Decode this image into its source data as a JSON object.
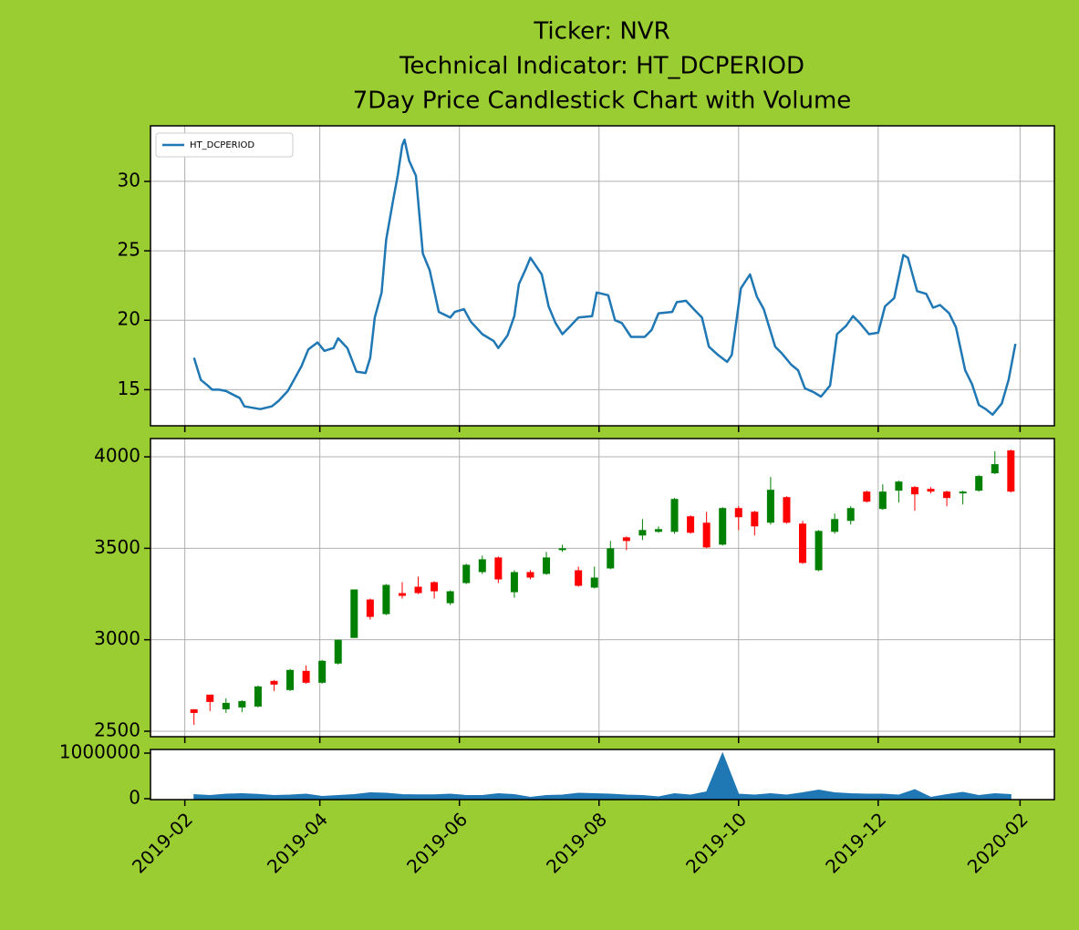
{
  "chart_data": [
    {
      "type": "line",
      "title": [
        "Ticker: NVR",
        "Technical Indicator: HT_DCPERIOD",
        "7Day Price Candlestick Chart with Volume"
      ],
      "x": [
        "2019-02-05",
        "2019-02-08",
        "2019-02-11",
        "2019-02-13",
        "2019-02-16",
        "2019-02-19",
        "2019-02-25",
        "2019-02-27",
        "2019-03-06",
        "2019-03-11",
        "2019-03-14",
        "2019-03-18",
        "2019-03-21",
        "2019-03-24",
        "2019-03-27",
        "2019-03-31",
        "2019-04-03",
        "2019-04-07",
        "2019-04-09",
        "2019-04-13",
        "2019-04-17",
        "2019-04-21",
        "2019-04-23",
        "2019-04-25",
        "2019-04-28",
        "2019-04-30",
        "2019-05-03",
        "2019-05-05",
        "2019-05-07",
        "2019-05-08",
        "2019-05-10",
        "2019-05-13",
        "2019-05-16",
        "2019-05-19",
        "2019-05-23",
        "2019-05-28",
        "2019-05-30",
        "2019-06-03",
        "2019-06-06",
        "2019-06-11",
        "2019-06-16",
        "2019-06-18",
        "2019-06-22",
        "2019-06-25",
        "2019-06-27",
        "2019-06-30",
        "2019-07-02",
        "2019-07-07",
        "2019-07-10",
        "2019-07-13",
        "2019-07-16",
        "2019-07-19",
        "2019-07-23",
        "2019-07-29",
        "2019-07-31",
        "2019-08-05",
        "2019-08-08",
        "2019-08-11",
        "2019-08-15",
        "2019-08-21",
        "2019-08-24",
        "2019-08-27",
        "2019-09-02",
        "2019-09-04",
        "2019-09-08",
        "2019-09-12",
        "2019-09-15",
        "2019-09-18",
        "2019-09-22",
        "2019-09-26",
        "2019-09-28",
        "2019-10-02",
        "2019-10-06",
        "2019-10-09",
        "2019-10-12",
        "2019-10-17",
        "2019-10-20",
        "2019-10-24",
        "2019-10-27",
        "2019-10-30",
        "2019-11-03",
        "2019-11-06",
        "2019-11-10",
        "2019-11-13",
        "2019-11-17",
        "2019-11-20",
        "2019-11-23",
        "2019-11-27",
        "2019-12-01",
        "2019-12-04",
        "2019-12-08",
        "2019-12-12",
        "2019-12-14",
        "2019-12-18",
        "2019-12-22",
        "2019-12-25",
        "2019-12-28",
        "2020-01-01",
        "2020-01-04",
        "2020-01-08",
        "2020-01-11",
        "2020-01-14",
        "2020-01-17",
        "2020-01-20",
        "2020-01-24",
        "2020-01-27",
        "2020-01-30"
      ],
      "series": [
        {
          "name": "HT_DCPERIOD",
          "color": "#1f77b4",
          "values": [
            17.3,
            15.7,
            15.3,
            15.0,
            15.0,
            14.9,
            14.4,
            13.8,
            13.6,
            13.8,
            14.2,
            14.9,
            15.8,
            16.7,
            17.9,
            18.4,
            17.8,
            18.0,
            18.7,
            18.0,
            16.3,
            16.2,
            17.3,
            20.2,
            22.0,
            25.8,
            28.6,
            30.4,
            32.6,
            33.0,
            31.5,
            30.4,
            24.8,
            23.6,
            20.6,
            20.2,
            20.6,
            20.8,
            19.9,
            19.0,
            18.5,
            18.0,
            18.9,
            20.3,
            22.6,
            23.7,
            24.5,
            23.3,
            21.0,
            19.8,
            19.0,
            19.5,
            20.2,
            20.3,
            22.0,
            21.8,
            20.0,
            19.8,
            18.8,
            18.8,
            19.3,
            20.5,
            20.6,
            21.3,
            21.4,
            20.7,
            20.2,
            18.1,
            17.5,
            17.0,
            17.5,
            22.3,
            23.3,
            21.7,
            20.8,
            18.1,
            17.6,
            16.8,
            16.4,
            15.1,
            14.8,
            14.5,
            15.3,
            19.0,
            19.6,
            20.3,
            19.8,
            19.0,
            19.1,
            21.0,
            21.6,
            24.7,
            24.5,
            22.1,
            21.9,
            20.9,
            21.1,
            20.5,
            19.5,
            16.4,
            15.4,
            13.9,
            13.6,
            13.2,
            14.0,
            15.7,
            18.3
          ]
        }
      ],
      "ylim": [
        12.4,
        34.0
      ],
      "yticks": [
        15,
        20,
        25,
        30
      ],
      "grid": true,
      "legend": "upper left"
    },
    {
      "type": "candlestick",
      "x": [
        "2019-02-05",
        "2019-02-12",
        "2019-02-19",
        "2019-02-26",
        "2019-03-05",
        "2019-03-12",
        "2019-03-19",
        "2019-03-26",
        "2019-04-02",
        "2019-04-09",
        "2019-04-16",
        "2019-04-23",
        "2019-04-30",
        "2019-05-07",
        "2019-05-14",
        "2019-05-21",
        "2019-05-28",
        "2019-06-04",
        "2019-06-11",
        "2019-06-18",
        "2019-06-25",
        "2019-07-02",
        "2019-07-09",
        "2019-07-16",
        "2019-07-23",
        "2019-07-30",
        "2019-08-06",
        "2019-08-13",
        "2019-08-20",
        "2019-08-27",
        "2019-09-03",
        "2019-09-10",
        "2019-09-17",
        "2019-09-24",
        "2019-10-01",
        "2019-10-08",
        "2019-10-15",
        "2019-10-22",
        "2019-10-29",
        "2019-11-05",
        "2019-11-12",
        "2019-11-19",
        "2019-11-26",
        "2019-12-03",
        "2019-12-10",
        "2019-12-17",
        "2019-12-24",
        "2019-12-31",
        "2020-01-07",
        "2020-01-14",
        "2020-01-21",
        "2020-01-28"
      ],
      "open": [
        2620,
        2700,
        2620,
        2630,
        2635,
        2775,
        2725,
        2830,
        2765,
        2870,
        3010,
        3220,
        3140,
        3255,
        3290,
        3315,
        3200,
        3310,
        3370,
        3450,
        3260,
        3370,
        3360,
        3490,
        3380,
        3285,
        3390,
        3560,
        3570,
        3590,
        3590,
        3675,
        3640,
        3520,
        3720,
        3700,
        3640,
        3780,
        3635,
        3380,
        3590,
        3650,
        3810,
        3715,
        3815,
        3835,
        3825,
        3810,
        3800,
        3815,
        3910,
        4035
      ],
      "high": [
        2620,
        2700,
        2680,
        2670,
        2750,
        2780,
        2840,
        2860,
        2890,
        3000,
        3275,
        3225,
        3305,
        3315,
        3345,
        3320,
        3270,
        3415,
        3460,
        3455,
        3380,
        3380,
        3480,
        3520,
        3400,
        3400,
        3540,
        3565,
        3660,
        3620,
        3775,
        3680,
        3700,
        3725,
        3730,
        3705,
        3890,
        3785,
        3650,
        3600,
        3690,
        3730,
        3815,
        3850,
        3870,
        3840,
        3835,
        3815,
        3815,
        3900,
        4030,
        4040
      ],
      "low": [
        2535,
        2610,
        2600,
        2605,
        2630,
        2720,
        2720,
        2760,
        2760,
        2865,
        3010,
        3110,
        3135,
        3225,
        3250,
        3225,
        3190,
        3305,
        3360,
        3310,
        3230,
        3330,
        3355,
        3480,
        3290,
        3280,
        3385,
        3490,
        3545,
        3585,
        3580,
        3580,
        3500,
        3515,
        3600,
        3570,
        3630,
        3635,
        3415,
        3375,
        3580,
        3630,
        3750,
        3710,
        3750,
        3705,
        3800,
        3730,
        3740,
        3810,
        3905,
        3805
      ],
      "close": [
        2600,
        2660,
        2655,
        2665,
        2745,
        2755,
        2835,
        2765,
        2885,
        3000,
        3275,
        3125,
        3300,
        3240,
        3255,
        3265,
        3265,
        3410,
        3440,
        3330,
        3370,
        3340,
        3450,
        3500,
        3295,
        3340,
        3500,
        3540,
        3600,
        3605,
        3770,
        3585,
        3505,
        3720,
        3670,
        3620,
        3820,
        3640,
        3420,
        3595,
        3660,
        3720,
        3755,
        3810,
        3865,
        3795,
        3810,
        3775,
        3810,
        3895,
        3960,
        3810
      ],
      "up_color": "#008000",
      "down_color": "#ff0000",
      "ylim": [
        2470,
        4100
      ],
      "yticks": [
        2500,
        3000,
        3500,
        4000
      ],
      "grid": true
    },
    {
      "type": "area",
      "x": [
        "2019-02-05",
        "2019-02-12",
        "2019-02-19",
        "2019-02-26",
        "2019-03-05",
        "2019-03-12",
        "2019-03-19",
        "2019-03-26",
        "2019-04-02",
        "2019-04-09",
        "2019-04-16",
        "2019-04-23",
        "2019-04-30",
        "2019-05-07",
        "2019-05-14",
        "2019-05-21",
        "2019-05-28",
        "2019-06-04",
        "2019-06-11",
        "2019-06-18",
        "2019-06-25",
        "2019-07-02",
        "2019-07-09",
        "2019-07-16",
        "2019-07-23",
        "2019-07-30",
        "2019-08-06",
        "2019-08-13",
        "2019-08-20",
        "2019-08-27",
        "2019-09-03",
        "2019-09-10",
        "2019-09-17",
        "2019-09-24",
        "2019-10-01",
        "2019-10-08",
        "2019-10-15",
        "2019-10-22",
        "2019-10-29",
        "2019-11-05",
        "2019-11-12",
        "2019-11-19",
        "2019-11-26",
        "2019-12-03",
        "2019-12-10",
        "2019-12-17",
        "2019-12-24",
        "2019-12-31",
        "2020-01-07",
        "2020-01-14",
        "2020-01-21",
        "2020-01-28"
      ],
      "values": [
        90000,
        70000,
        100000,
        110000,
        95000,
        70000,
        80000,
        100000,
        50000,
        70000,
        90000,
        130000,
        120000,
        90000,
        85000,
        85000,
        100000,
        70000,
        70000,
        110000,
        90000,
        30000,
        70000,
        80000,
        120000,
        110000,
        100000,
        80000,
        70000,
        40000,
        110000,
        80000,
        150000,
        1000000,
        100000,
        80000,
        110000,
        80000,
        130000,
        190000,
        130000,
        110000,
        100000,
        100000,
        80000,
        200000,
        30000,
        90000,
        140000,
        70000,
        110000,
        90000
      ],
      "color": "#1f77b4",
      "ylim": [
        -20000,
        1080000
      ],
      "yticks": [
        0,
        1000000
      ],
      "xlim": [
        "2019-01-17",
        "2020-02-16"
      ],
      "xticks": [
        {
          "value": "2019-02-01",
          "label": "2019-02"
        },
        {
          "value": "2019-04-01",
          "label": "2019-04"
        },
        {
          "value": "2019-06-01",
          "label": "2019-06"
        },
        {
          "value": "2019-08-01",
          "label": "2019-08"
        },
        {
          "value": "2019-10-01",
          "label": "2019-10"
        },
        {
          "value": "2019-12-01",
          "label": "2019-12"
        },
        {
          "value": "2020-02-01",
          "label": "2020-02"
        }
      ]
    }
  ]
}
